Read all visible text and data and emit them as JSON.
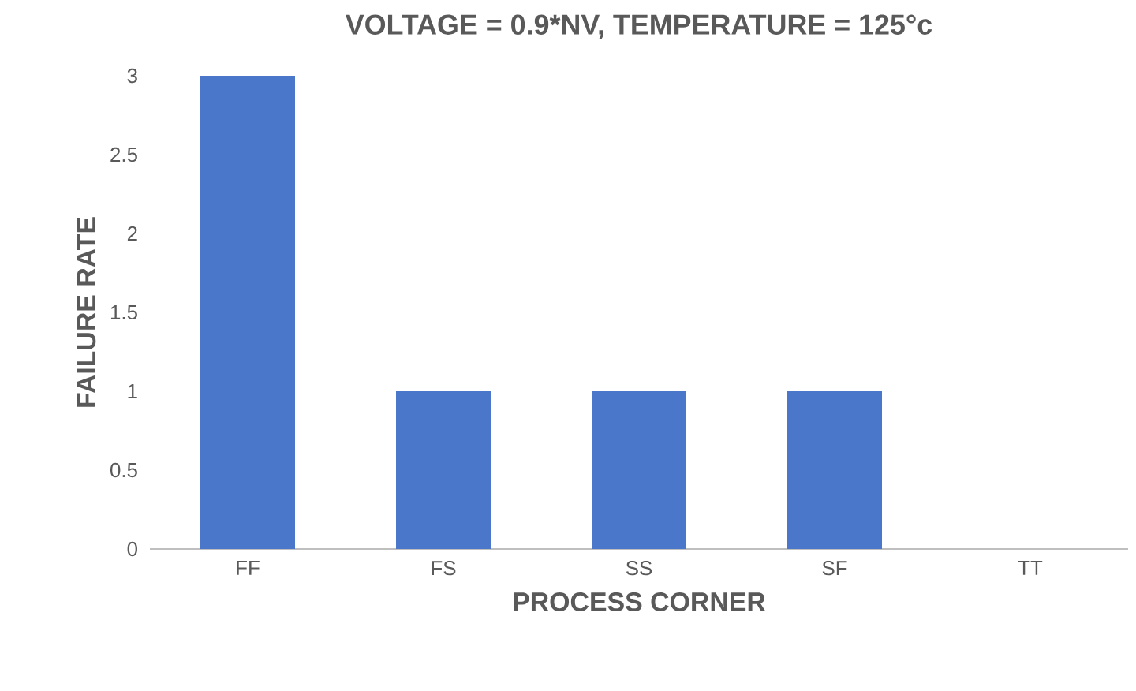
{
  "chart_data": {
    "type": "bar",
    "title": "VOLTAGE = 0.9*NV, TEMPERATURE = 125°c",
    "xlabel": "PROCESS CORNER",
    "ylabel": "FAILURE RATE",
    "categories": [
      "FF",
      "FS",
      "SS",
      "SF",
      "TT"
    ],
    "values": [
      3,
      1,
      1,
      1,
      0
    ],
    "color": "#4a77c9",
    "ylim": [
      0,
      3
    ],
    "yticks": [
      0,
      0.5,
      1,
      1.5,
      2,
      2.5,
      3
    ]
  }
}
